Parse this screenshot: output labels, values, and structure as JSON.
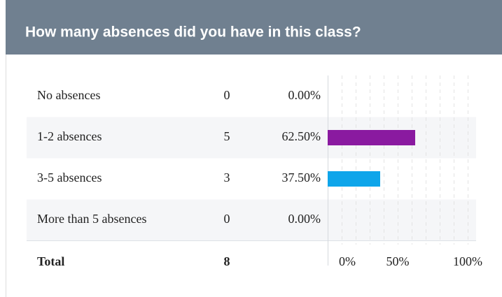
{
  "chart_data": {
    "type": "bar",
    "orientation": "horizontal",
    "title": "How many absences did you have in this class?",
    "categories": [
      "No absences",
      "1-2 absences",
      "3-5 absences",
      "More than 5 absences"
    ],
    "counts": [
      0,
      5,
      3,
      0
    ],
    "values": [
      0,
      62.5,
      37.5,
      0
    ],
    "value_labels": [
      "0.00%",
      "62.50%",
      "37.50%",
      "0.00%"
    ],
    "colors": [
      "#8a1aa0",
      "#8a1aa0",
      "#0ea5ea",
      "#0ea5ea"
    ],
    "total_label": "Total",
    "total_count": 8,
    "xlim": [
      0,
      100
    ],
    "xticks": [
      {
        "value": 0,
        "label": "0%"
      },
      {
        "value": 50,
        "label": "50%"
      },
      {
        "value": 100,
        "label": "100%"
      }
    ],
    "grid": true,
    "grid_ticks": [
      0,
      10,
      20,
      30,
      40,
      50,
      60,
      70,
      80,
      90,
      100
    ]
  }
}
